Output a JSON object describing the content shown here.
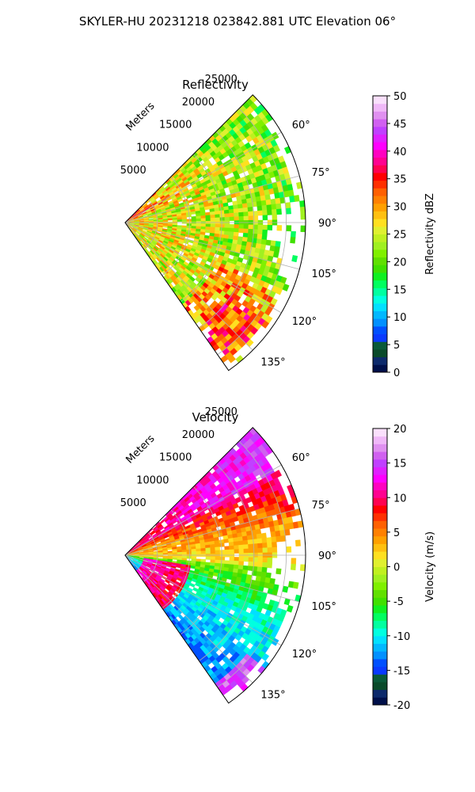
{
  "figure": {
    "suptitle": "SKYLER-HU  20231218  023842.881 UTC Elevation 06°"
  },
  "chart_data": [
    {
      "type": "heatmap",
      "subtype": "polar-ppi-sector",
      "title": "Reflectivity",
      "radial_label": "Meters",
      "azimuth_range_deg": [
        45,
        145
      ],
      "range_max_m": 28000,
      "range_ticks": [
        "5000",
        "10000",
        "15000",
        "20000",
        "25000"
      ],
      "azimuth_ticks": [
        "60°",
        "75°",
        "90°",
        "105°",
        "120°",
        "135°"
      ],
      "grid": true,
      "colorbar": {
        "label": "Reflectivity dBZ",
        "min": 0,
        "max": 50,
        "ticks": [
          "0",
          "5",
          "10",
          "15",
          "20",
          "25",
          "30",
          "35",
          "40",
          "45",
          "50"
        ],
        "colors": [
          "#00104a",
          "#0d2a6b",
          "#0a4a2a",
          "#0a5a3a",
          "#0a3aff",
          "#0050ff",
          "#0090ff",
          "#00b8ff",
          "#00e0ff",
          "#00ffe0",
          "#00ffa0",
          "#00ff60",
          "#10f020",
          "#40e000",
          "#60e000",
          "#80f000",
          "#a0f020",
          "#c0f020",
          "#e0f030",
          "#ffe020",
          "#ffc010",
          "#ffa000",
          "#ff8000",
          "#ff6000",
          "#ff3000",
          "#ff0000",
          "#ff0050",
          "#ff0090",
          "#ff00c0",
          "#ff00ff",
          "#e020ff",
          "#c040ff",
          "#d060f0",
          "#e090f0",
          "#f0b8f8",
          "#fae0fc"
        ]
      }
    },
    {
      "type": "heatmap",
      "subtype": "polar-ppi-sector",
      "title": "Velocity",
      "radial_label": "Meters",
      "azimuth_range_deg": [
        45,
        145
      ],
      "range_max_m": 28000,
      "range_ticks": [
        "5000",
        "10000",
        "15000",
        "20000",
        "25000"
      ],
      "azimuth_ticks": [
        "60°",
        "75°",
        "90°",
        "105°",
        "120°",
        "135°"
      ],
      "grid": true,
      "colorbar": {
        "label": "Velocity (m/s)",
        "min": -20,
        "max": 20,
        "ticks": [
          "-20",
          "-15",
          "-10",
          "-5",
          "0",
          "5",
          "10",
          "15",
          "20"
        ],
        "colors": [
          "#00104a",
          "#0d2a6b",
          "#0a4a2a",
          "#0a5a3a",
          "#0a3aff",
          "#0050ff",
          "#0090ff",
          "#00b8ff",
          "#00e0ff",
          "#00ffe0",
          "#00ffa0",
          "#00ff60",
          "#10f020",
          "#40e000",
          "#60e000",
          "#80f000",
          "#a0f020",
          "#c0f020",
          "#e0f030",
          "#ffe020",
          "#ffc010",
          "#ffa000",
          "#ff8000",
          "#ff6000",
          "#ff3000",
          "#ff0000",
          "#ff0050",
          "#ff0090",
          "#ff00c0",
          "#ff00ff",
          "#e020ff",
          "#c040ff",
          "#d060f0",
          "#e090f0",
          "#f0b8f8",
          "#fae0fc"
        ]
      }
    }
  ]
}
